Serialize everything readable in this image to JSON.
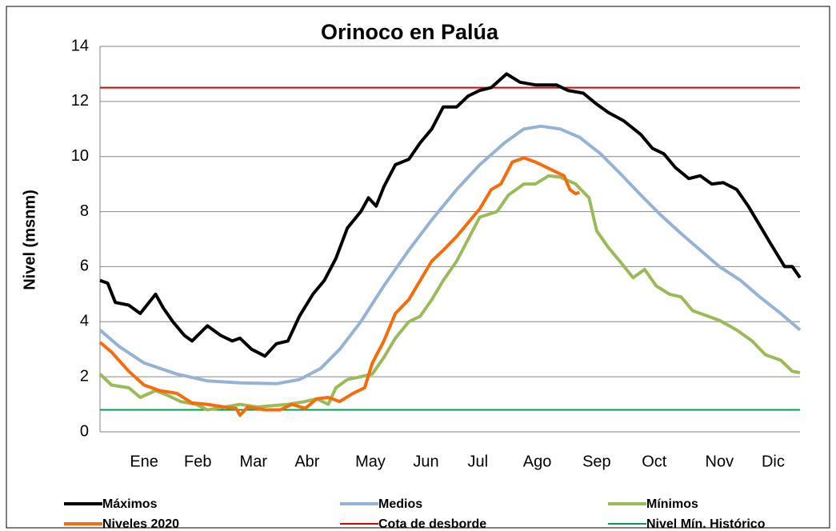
{
  "chart_data": {
    "type": "line",
    "title": "Orinoco en Palúa",
    "y_label": "Nivel (msnm)",
    "xlim": [
      0,
      365
    ],
    "ylim": [
      0,
      14
    ],
    "yticks": [
      0,
      2,
      4,
      6,
      8,
      10,
      12,
      14
    ],
    "grid": true,
    "legend": "bottom",
    "xticks": [
      {
        "value": 23,
        "label": "Ene"
      },
      {
        "value": 51,
        "label": "Feb"
      },
      {
        "value": 80,
        "label": "Mar"
      },
      {
        "value": 108,
        "label": "Abr"
      },
      {
        "value": 141,
        "label": "May"
      },
      {
        "value": 170,
        "label": "Jun"
      },
      {
        "value": 197,
        "label": "Jul"
      },
      {
        "value": 228,
        "label": "Ago"
      },
      {
        "value": 259,
        "label": "Sep"
      },
      {
        "value": 289,
        "label": "Oct"
      },
      {
        "value": 323,
        "label": "Nov"
      },
      {
        "value": 351,
        "label": "Dic"
      }
    ],
    "series": [
      {
        "name": "Máximos",
        "color": "#000000",
        "x": [
          0,
          4,
          8,
          15,
          21,
          29,
          33,
          38,
          44,
          48,
          56,
          63,
          69,
          73,
          79,
          86,
          92,
          98,
          104,
          111,
          117,
          123,
          129,
          136,
          140,
          144,
          148,
          154,
          161,
          167,
          173,
          179,
          186,
          192,
          198,
          204,
          212,
          219,
          227,
          238,
          244,
          252,
          259,
          265,
          273,
          282,
          288,
          294,
          300,
          307,
          313,
          319,
          325,
          332,
          338,
          344,
          350,
          357,
          361,
          365
        ],
        "values": [
          5.5,
          5.4,
          4.7,
          4.6,
          4.3,
          5.0,
          4.5,
          4.0,
          3.5,
          3.3,
          3.85,
          3.5,
          3.3,
          3.4,
          3.0,
          2.75,
          3.2,
          3.3,
          4.2,
          5.0,
          5.5,
          6.3,
          7.4,
          8.0,
          8.5,
          8.2,
          8.9,
          9.7,
          9.9,
          10.5,
          11.0,
          11.8,
          11.8,
          12.2,
          12.4,
          12.5,
          13.0,
          12.7,
          12.6,
          12.6,
          12.4,
          12.3,
          11.9,
          11.6,
          11.3,
          10.8,
          10.3,
          10.1,
          9.6,
          9.2,
          9.3,
          9.0,
          9.05,
          8.8,
          8.2,
          7.5,
          6.8,
          6.0,
          6.0,
          5.6
        ]
      },
      {
        "name": "Medios",
        "color": "#95b3d7",
        "x": [
          0,
          10,
          23,
          40,
          56,
          73,
          92,
          104,
          115,
          125,
          136,
          148,
          161,
          173,
          186,
          198,
          211,
          221,
          230,
          240,
          250,
          261,
          271,
          282,
          292,
          303,
          313,
          323,
          334,
          344,
          355,
          365
        ],
        "values": [
          3.7,
          3.1,
          2.5,
          2.1,
          1.85,
          1.78,
          1.75,
          1.9,
          2.3,
          3.0,
          4.0,
          5.3,
          6.6,
          7.7,
          8.8,
          9.7,
          10.5,
          11.0,
          11.1,
          11.0,
          10.7,
          10.1,
          9.4,
          8.6,
          7.9,
          7.2,
          6.6,
          6.0,
          5.5,
          4.9,
          4.3,
          3.7
        ]
      },
      {
        "name": "Mínimos",
        "color": "#9bbb59",
        "x": [
          0,
          6,
          15,
          21,
          29,
          36,
          42,
          50,
          56,
          65,
          73,
          82,
          90,
          98,
          107,
          113,
          119,
          123,
          129,
          136,
          142,
          148,
          154,
          161,
          167,
          173,
          179,
          186,
          192,
          198,
          207,
          213,
          221,
          227,
          234,
          240,
          248,
          255,
          259,
          265,
          271,
          278,
          284,
          290,
          297,
          303,
          309,
          317,
          323,
          332,
          340,
          347,
          355,
          361,
          365
        ],
        "values": [
          2.1,
          1.7,
          1.6,
          1.25,
          1.5,
          1.3,
          1.1,
          1.0,
          0.8,
          0.9,
          1.0,
          0.9,
          0.95,
          1.0,
          1.1,
          1.2,
          1.0,
          1.6,
          1.9,
          2.0,
          2.1,
          2.7,
          3.4,
          4.0,
          4.2,
          4.8,
          5.5,
          6.2,
          7.0,
          7.8,
          8.0,
          8.6,
          9.0,
          9.0,
          9.3,
          9.25,
          9.0,
          8.5,
          7.3,
          6.7,
          6.2,
          5.6,
          5.9,
          5.3,
          5.0,
          4.9,
          4.4,
          4.2,
          4.05,
          3.7,
          3.3,
          2.8,
          2.6,
          2.2,
          2.15
        ]
      },
      {
        "name": "Niveles 2020",
        "color": "#f96b0a",
        "x": [
          0,
          6,
          15,
          23,
          31,
          40,
          48,
          56,
          65,
          71,
          73,
          77,
          86,
          94,
          100,
          107,
          113,
          119,
          125,
          132,
          138,
          142,
          148,
          154,
          161,
          167,
          173,
          179,
          186,
          192,
          198,
          204,
          209,
          215,
          221,
          227,
          236,
          242,
          245,
          248,
          250
        ],
        "values": [
          3.25,
          2.9,
          2.2,
          1.7,
          1.5,
          1.4,
          1.05,
          1.0,
          0.9,
          0.85,
          0.6,
          0.9,
          0.8,
          0.8,
          1.0,
          0.85,
          1.2,
          1.25,
          1.1,
          1.4,
          1.6,
          2.5,
          3.3,
          4.3,
          4.8,
          5.5,
          6.2,
          6.6,
          7.1,
          7.6,
          8.1,
          8.8,
          9.0,
          9.8,
          9.95,
          9.8,
          9.5,
          9.3,
          8.8,
          8.65,
          8.7
        ]
      }
    ],
    "reference_lines": [
      {
        "name": "Cota de desborde",
        "color": "#e00000",
        "value": 12.5
      },
      {
        "name": "Nivel Mín. Histórico",
        "color": "#00a050",
        "value": 0.8
      }
    ]
  }
}
